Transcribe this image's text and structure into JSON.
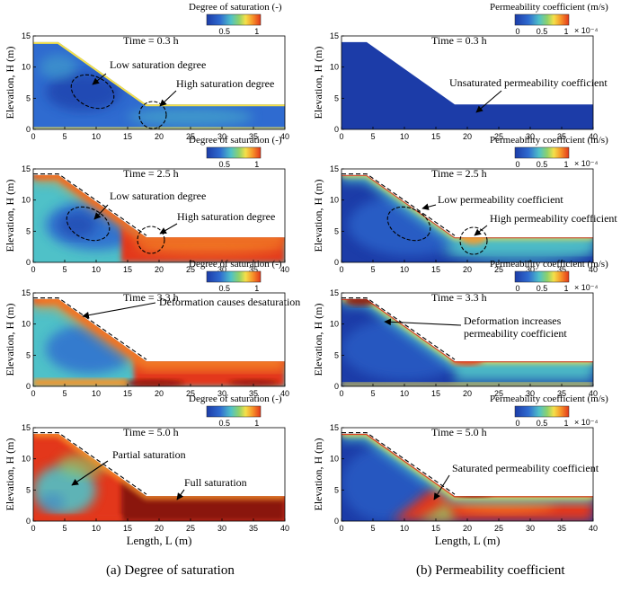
{
  "figure": {
    "captions": [
      "(a)  Degree of saturation",
      "(b) Permeability coefficient"
    ],
    "panels": [
      {
        "col": 0,
        "row": 0,
        "time": "Time = 0.3 h",
        "cbar_title": "Degree of saturation (-)",
        "cbar_ticks": [
          "0.5",
          "1"
        ],
        "cbar_exp": "",
        "state": "s03",
        "annotations": [
          {
            "text": "Low saturation degree"
          },
          {
            "text": "High saturation degree"
          }
        ]
      },
      {
        "col": 0,
        "row": 1,
        "time": "Time = 2.5 h",
        "cbar_title": "Degree of saturation (-)",
        "cbar_ticks": [
          "0.5",
          "1"
        ],
        "cbar_exp": "",
        "state": "s25",
        "annotations": [
          {
            "text": "Low saturation degree"
          },
          {
            "text": "High saturation degree"
          }
        ]
      },
      {
        "col": 0,
        "row": 2,
        "time": "Time = 3.3 h",
        "cbar_title": "Degree of saturation (-)",
        "cbar_ticks": [
          "0.5",
          "1"
        ],
        "cbar_exp": "",
        "state": "s33",
        "annotations": [
          {
            "text": "Deformation causes desaturation"
          }
        ]
      },
      {
        "col": 0,
        "row": 3,
        "time": "Time = 5.0 h",
        "cbar_title": "Degree of saturation (-)",
        "cbar_ticks": [
          "0.5",
          "1"
        ],
        "cbar_exp": "",
        "state": "s50",
        "annotations": [
          {
            "text": "Partial saturation"
          },
          {
            "text": "Full saturation"
          }
        ]
      },
      {
        "col": 1,
        "row": 0,
        "time": "Time = 0.3 h",
        "cbar_title": "Permeability coefficient (m/s)",
        "cbar_ticks": [
          "0",
          "0.5",
          "1"
        ],
        "cbar_exp": "× 10⁻⁴",
        "state": "k03",
        "annotations": [
          {
            "text": "Unsaturated permeability coefficient"
          }
        ]
      },
      {
        "col": 1,
        "row": 1,
        "time": "Time = 2.5 h",
        "cbar_title": "Permeability coefficient (m/s)",
        "cbar_ticks": [
          "0",
          "0.5",
          "1"
        ],
        "cbar_exp": "× 10⁻⁴",
        "state": "k25",
        "annotations": [
          {
            "text": "Low permeability coefficient"
          },
          {
            "text": "High permeability coefficient"
          }
        ]
      },
      {
        "col": 1,
        "row": 2,
        "time": "Time = 3.3 h",
        "cbar_title": "Permeability coefficient (m/s)",
        "cbar_ticks": [
          "0",
          "0.5",
          "1"
        ],
        "cbar_exp": "× 10⁻⁴",
        "state": "k33",
        "annotations": [
          {
            "text": "Deformation increases\npermeability coefficient"
          }
        ]
      },
      {
        "col": 1,
        "row": 3,
        "time": "Time = 5.0 h",
        "cbar_title": "Permeability coefficient (m/s)",
        "cbar_ticks": [
          "0",
          "0.5",
          "1"
        ],
        "cbar_exp": "× 10⁻⁴",
        "state": "k50",
        "annotations": [
          {
            "text": "Saturated permeability coefficient"
          }
        ]
      }
    ],
    "axes": {
      "xlabel": "Length, L (m)",
      "ylabel": "Elevation, H (m)",
      "xticks": [
        0,
        5,
        10,
        15,
        20,
        25,
        30,
        35,
        40
      ],
      "yticks": [
        0,
        5,
        10,
        15
      ],
      "xlim": [
        0,
        40
      ],
      "ylim": [
        0,
        15
      ]
    },
    "geometry_m": {
      "crest_height": 14,
      "toe_height": 4,
      "crest_end_x": 4,
      "slope_toe_x": 18,
      "domain_length": 40
    },
    "colors": {
      "deep_blue": "#1c3ca8",
      "blue": "#2f6bd0",
      "cyan_green": "#4fc1c8",
      "green": "#8fd26a",
      "yellow": "#f4e04a",
      "orange": "#f7962a",
      "red": "#e3371b",
      "dark_red": "#8a1208"
    }
  }
}
